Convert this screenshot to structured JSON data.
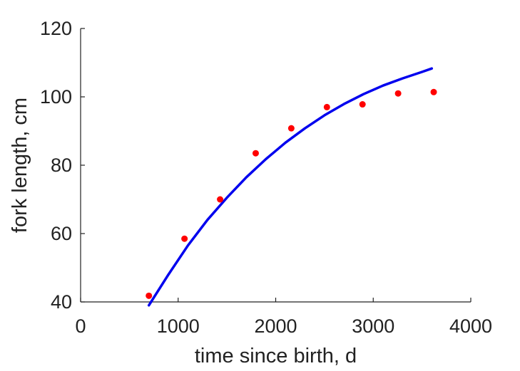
{
  "chart_data": {
    "type": "scatter",
    "title": "",
    "xlabel": "time since birth, d",
    "ylabel": "fork length, cm",
    "xlim": [
      0,
      4000
    ],
    "ylim": [
      40,
      120
    ],
    "xticks": [
      0,
      1000,
      2000,
      3000,
      4000
    ],
    "yticks": [
      40,
      60,
      80,
      100,
      120
    ],
    "xtick_labels": [
      "0",
      "1000",
      "2000",
      "3000",
      "4000"
    ],
    "ytick_labels": [
      "40",
      "60",
      "80",
      "100",
      "120"
    ],
    "grid": false,
    "legend": null,
    "series": [
      {
        "kind": "scatter",
        "color": "#ff0000",
        "x": [
          700,
          1065,
          1430,
          1795,
          2160,
          2525,
          2890,
          3255,
          3620
        ],
        "y": [
          41.8,
          58.5,
          70.0,
          83.5,
          90.8,
          97.0,
          97.8,
          101.0,
          101.4
        ]
      },
      {
        "kind": "line",
        "color": "#0000ee",
        "x": [
          700,
          900,
          1100,
          1300,
          1500,
          1700,
          1900,
          2100,
          2300,
          2500,
          2700,
          2900,
          3100,
          3300,
          3500,
          3600
        ],
        "y": [
          39.0,
          48.0,
          56.5,
          64.0,
          70.5,
          76.5,
          81.8,
          86.6,
          90.8,
          94.6,
          97.9,
          100.8,
          103.3,
          105.4,
          107.3,
          108.3
        ]
      }
    ]
  }
}
